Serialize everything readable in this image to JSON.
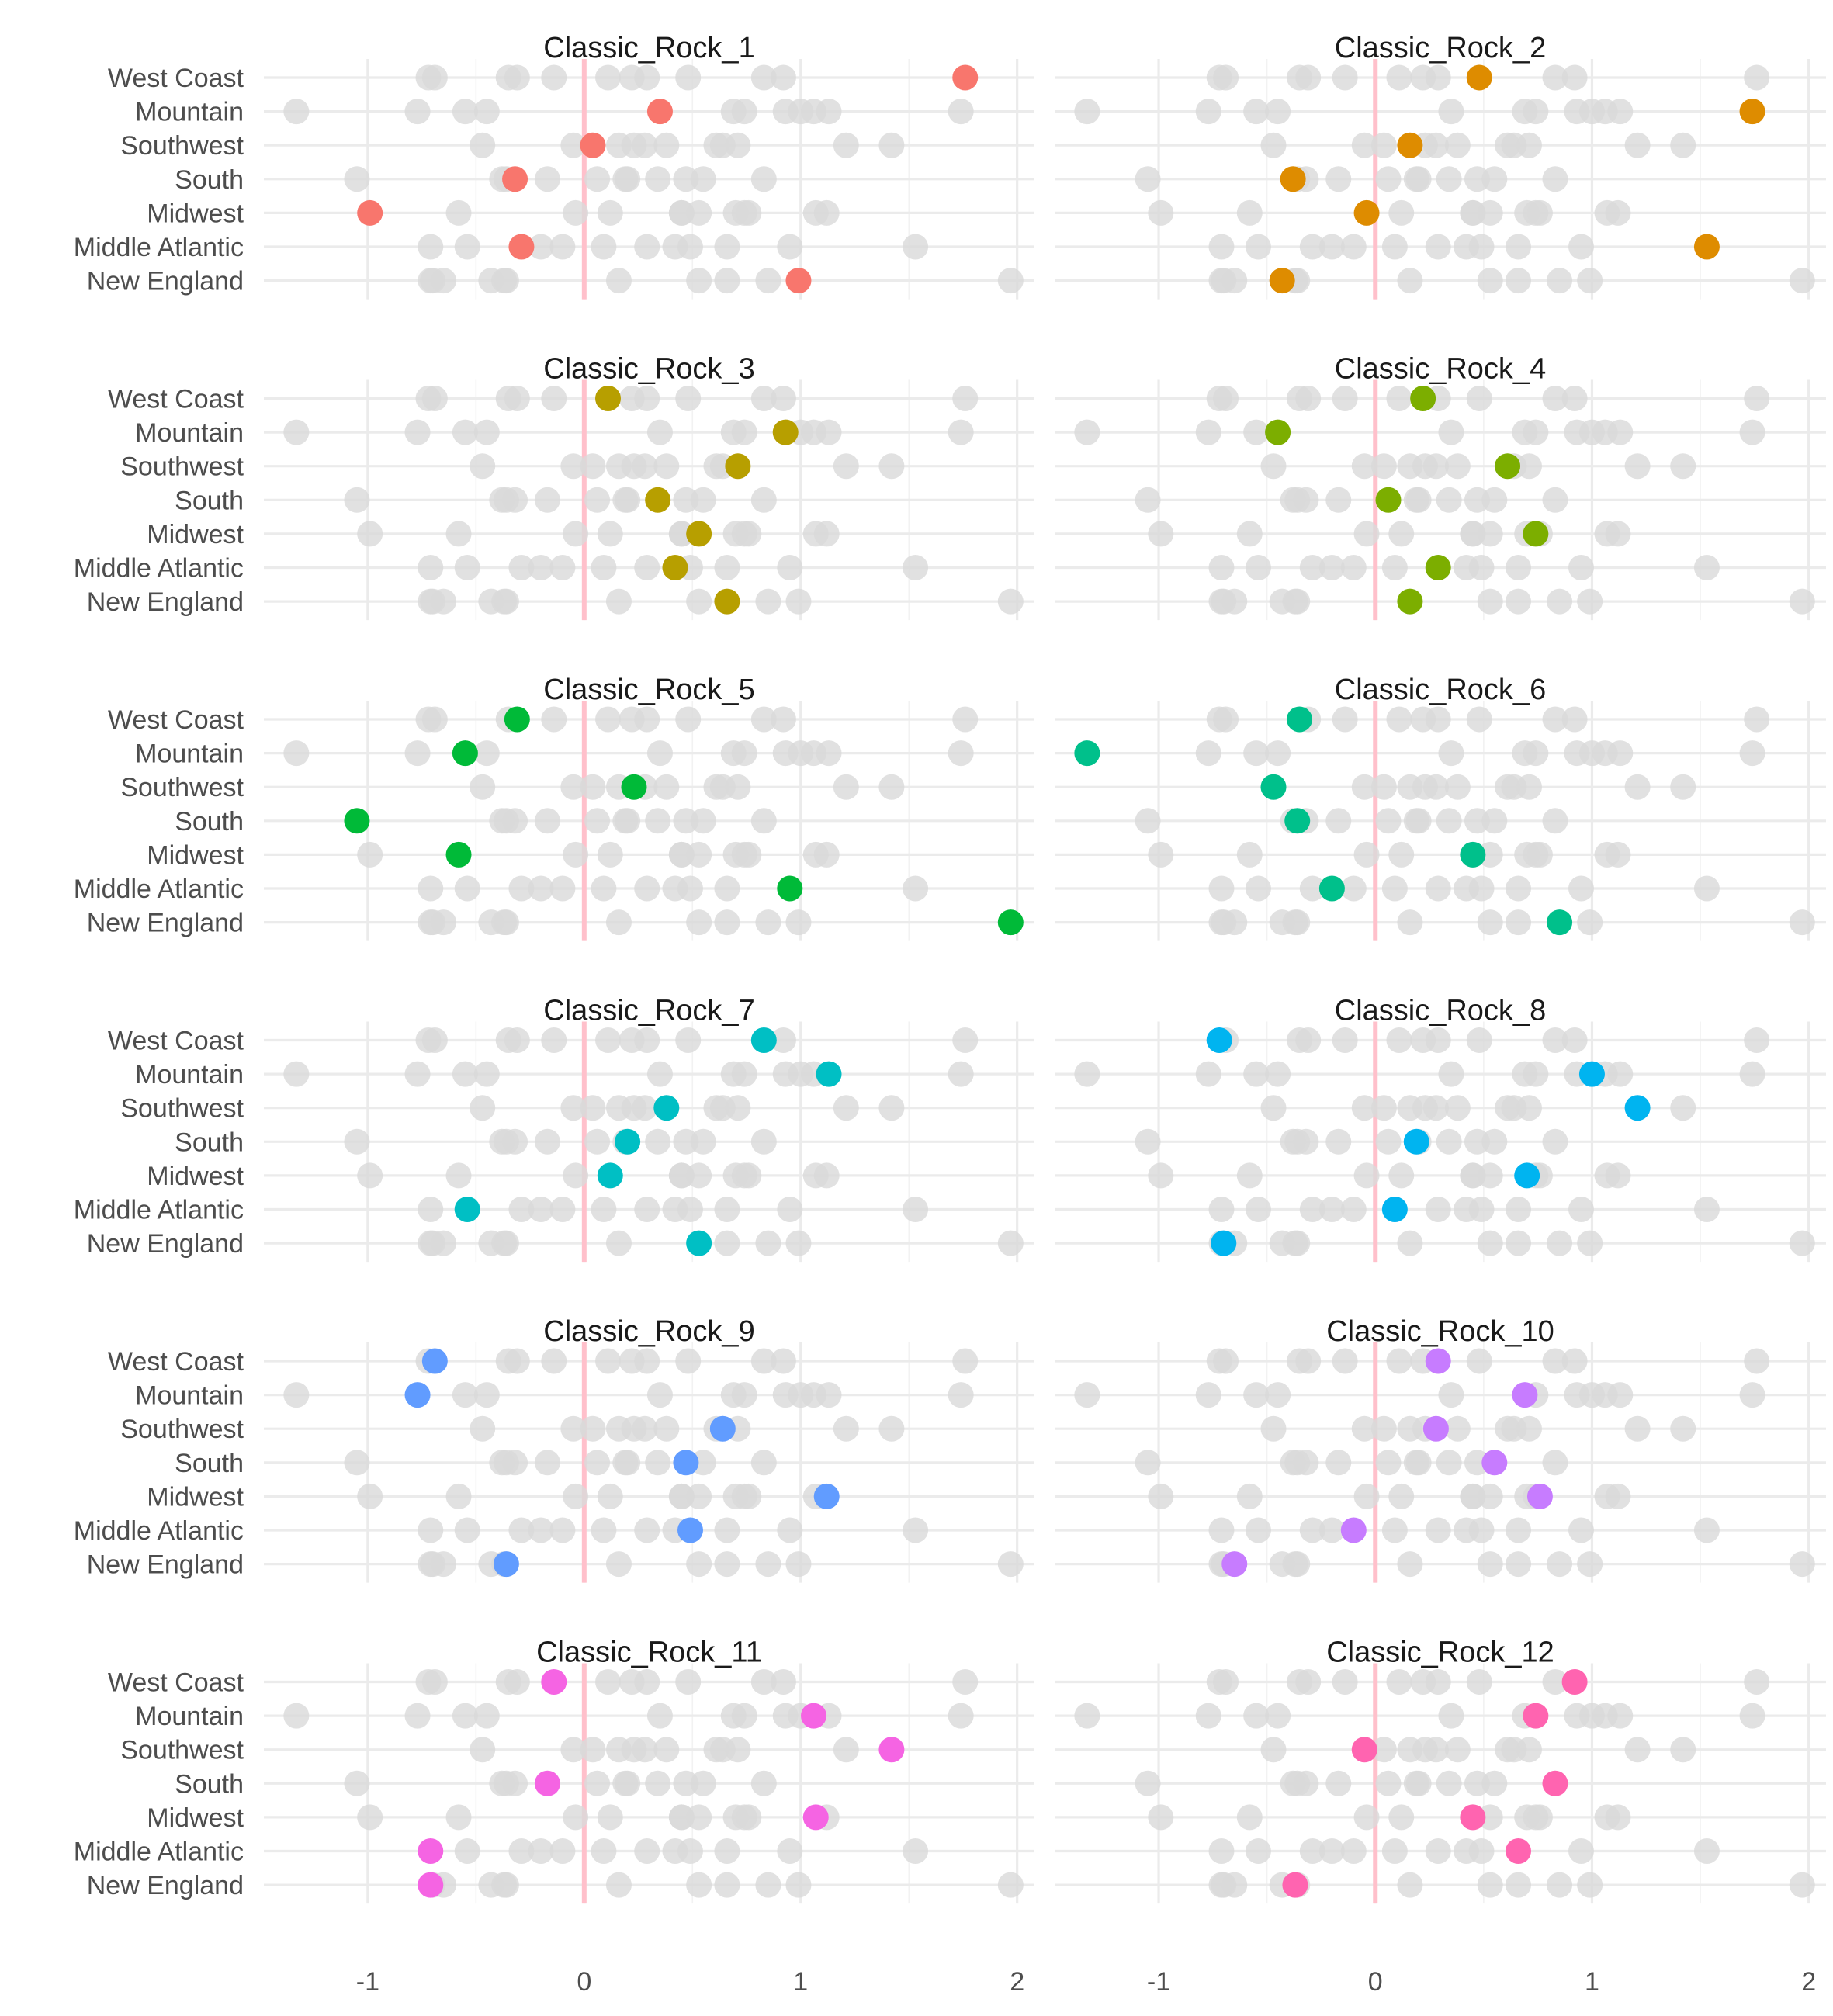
{
  "chart_data": {
    "type": "scatter",
    "facet_titles": [
      "Classic_Rock_1",
      "Classic_Rock_2",
      "Classic_Rock_3",
      "Classic_Rock_4",
      "Classic_Rock_5",
      "Classic_Rock_6",
      "Classic_Rock_7",
      "Classic_Rock_8",
      "Classic_Rock_9",
      "Classic_Rock_10",
      "Classic_Rock_11",
      "Classic_Rock_12"
    ],
    "regions": [
      "West Coast",
      "Mountain",
      "Southwest",
      "South",
      "Midwest",
      "Middle Atlantic",
      "New England"
    ],
    "x_ticks": [
      -1,
      0,
      1,
      2
    ],
    "x_tick_labels": [
      "-1",
      "0",
      "1",
      "2"
    ],
    "xlim": [
      -1.48,
      2.08
    ],
    "reference_line_x": 0,
    "reference_line_color": "#ffc0cb",
    "background_point_color": "#d9d9d9",
    "colors": [
      "#f8766d",
      "#de8c00",
      "#b79f00",
      "#7cae00",
      "#00ba38",
      "#00c08b",
      "#00bfc4",
      "#00b4f0",
      "#619cff",
      "#c77cff",
      "#f564e3",
      "#ff64b0"
    ],
    "xlabel": "",
    "ylabel": "",
    "grid": true,
    "legend": "none",
    "series": [
      {
        "name": "Classic_Rock_1",
        "values": [
          1.76,
          0.35,
          0.04,
          -0.32,
          -0.99,
          -0.29,
          0.99
        ]
      },
      {
        "name": "Classic_Rock_2",
        "values": [
          0.48,
          1.74,
          0.16,
          -0.38,
          -0.04,
          1.53,
          -0.43
        ]
      },
      {
        "name": "Classic_Rock_3",
        "values": [
          0.11,
          0.93,
          0.71,
          0.34,
          0.53,
          0.42,
          0.66
        ]
      },
      {
        "name": "Classic_Rock_4",
        "values": [
          0.22,
          -0.45,
          0.61,
          0.06,
          0.74,
          0.29,
          0.16
        ]
      },
      {
        "name": "Classic_Rock_5",
        "values": [
          -0.31,
          -0.55,
          0.23,
          -1.05,
          -0.58,
          0.95,
          1.97
        ]
      },
      {
        "name": "Classic_Rock_6",
        "values": [
          -0.35,
          -1.33,
          -0.47,
          -0.36,
          0.45,
          -0.2,
          0.85
        ]
      },
      {
        "name": "Classic_Rock_7",
        "values": [
          0.83,
          1.13,
          0.38,
          0.2,
          0.12,
          -0.54,
          0.53
        ]
      },
      {
        "name": "Classic_Rock_8",
        "values": [
          -0.72,
          1.0,
          1.21,
          0.19,
          0.7,
          0.09,
          -0.7
        ]
      },
      {
        "name": "Classic_Rock_9",
        "values": [
          -0.69,
          -0.77,
          0.64,
          0.47,
          1.12,
          0.49,
          -0.36
        ]
      },
      {
        "name": "Classic_Rock_10",
        "values": [
          0.29,
          0.69,
          0.28,
          0.55,
          0.76,
          -0.1,
          -0.65
        ]
      },
      {
        "name": "Classic_Rock_11",
        "values": [
          -0.14,
          1.06,
          1.42,
          -0.17,
          1.07,
          -0.71,
          -0.71
        ]
      },
      {
        "name": "Classic_Rock_12",
        "values": [
          0.92,
          0.74,
          -0.05,
          0.83,
          0.45,
          0.66,
          -0.37
        ]
      }
    ]
  }
}
